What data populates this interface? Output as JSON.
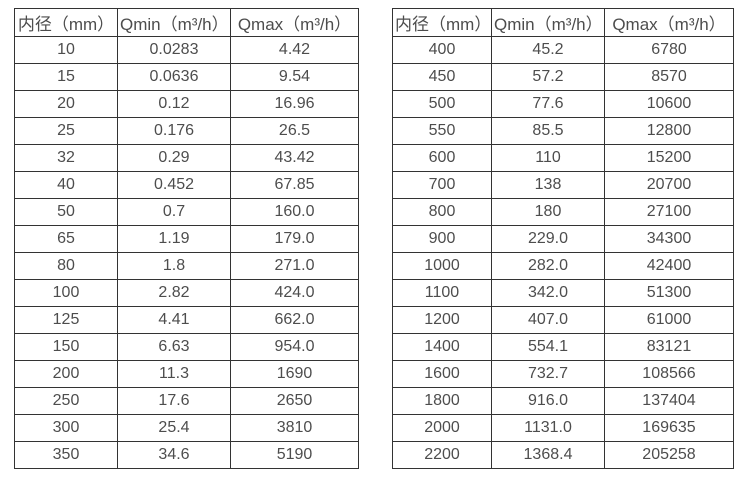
{
  "colors": {
    "text": "#4d4d4d",
    "border": "#333333",
    "background": "#ffffff"
  },
  "tables": [
    {
      "name": "flow-range-table-small-diameters",
      "headers": [
        "内径（mm）",
        "Qmin（m³/h）",
        "Qmax（m³/h）"
      ],
      "rows": [
        [
          "10",
          "0.0283",
          "4.42"
        ],
        [
          "15",
          "0.0636",
          "9.54"
        ],
        [
          "20",
          "0.12",
          "16.96"
        ],
        [
          "25",
          "0.176",
          "26.5"
        ],
        [
          "32",
          "0.29",
          "43.42"
        ],
        [
          "40",
          "0.452",
          "67.85"
        ],
        [
          "50",
          "0.7",
          "160.0"
        ],
        [
          "65",
          "1.19",
          "179.0"
        ],
        [
          "80",
          "1.8",
          "271.0"
        ],
        [
          "100",
          "2.82",
          "424.0"
        ],
        [
          "125",
          "4.41",
          "662.0"
        ],
        [
          "150",
          "6.63",
          "954.0"
        ],
        [
          "200",
          "11.3",
          "1690"
        ],
        [
          "250",
          "17.6",
          "2650"
        ],
        [
          "300",
          "25.4",
          "3810"
        ],
        [
          "350",
          "34.6",
          "5190"
        ]
      ]
    },
    {
      "name": "flow-range-table-large-diameters",
      "headers": [
        "内径（mm）",
        "Qmin（m³/h）",
        "Qmax（m³/h）"
      ],
      "rows": [
        [
          "400",
          "45.2",
          "6780"
        ],
        [
          "450",
          "57.2",
          "8570"
        ],
        [
          "500",
          "77.6",
          "10600"
        ],
        [
          "550",
          "85.5",
          "12800"
        ],
        [
          "600",
          "110",
          "15200"
        ],
        [
          "700",
          "138",
          "20700"
        ],
        [
          "800",
          "180",
          "27100"
        ],
        [
          "900",
          "229.0",
          "34300"
        ],
        [
          "1000",
          "282.0",
          "42400"
        ],
        [
          "1100",
          "342.0",
          "51300"
        ],
        [
          "1200",
          "407.0",
          "61000"
        ],
        [
          "1400",
          "554.1",
          "83121"
        ],
        [
          "1600",
          "732.7",
          "108566"
        ],
        [
          "1800",
          "916.0",
          "137404"
        ],
        [
          "2000",
          "1131.0",
          "169635"
        ],
        [
          "2200",
          "1368.4",
          "205258"
        ]
      ]
    }
  ]
}
